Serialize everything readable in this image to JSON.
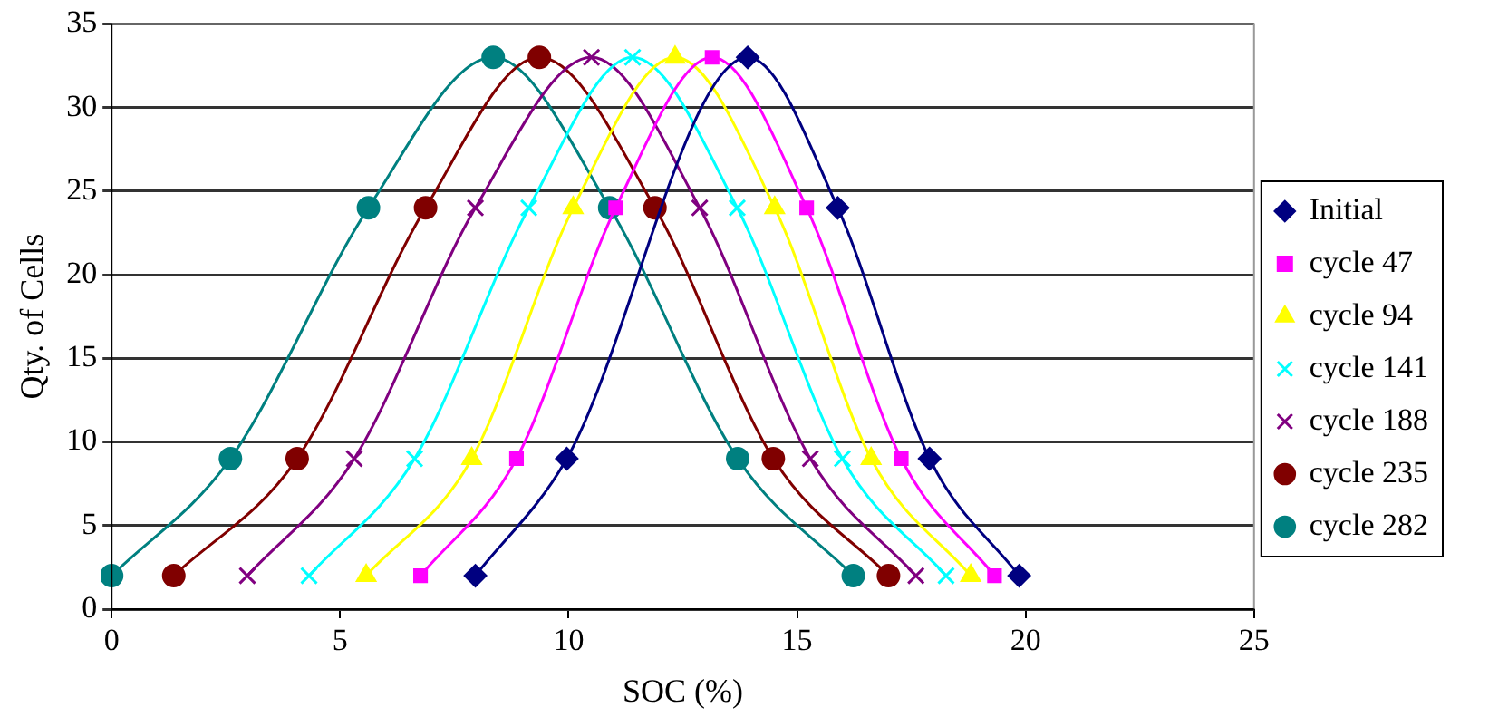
{
  "chart_data": {
    "type": "line",
    "xlabel": "SOC (%)",
    "ylabel": "Qty. of Cells",
    "xlim": [
      0,
      25
    ],
    "xticks": [
      0,
      5,
      10,
      15,
      20,
      25
    ],
    "ylim": [
      0,
      35
    ],
    "yticks": [
      0,
      5,
      10,
      15,
      20,
      25,
      30,
      35
    ],
    "grid": "y",
    "legend": "right",
    "line_style": "solid",
    "series": [
      {
        "name": "Initial",
        "color": "#000080",
        "marker": "diamond",
        "x": [
          7.96,
          9.96,
          11.9,
          13.92,
          15.89,
          17.9,
          19.86
        ],
        "values": [
          2,
          9,
          null,
          33,
          24,
          9,
          2
        ]
      },
      {
        "name": "cycle 47",
        "color": "#ff00ff",
        "marker": "square",
        "x": [
          6.76,
          8.86,
          11.03,
          13.14,
          15.21,
          17.28,
          19.32
        ],
        "values": [
          2,
          9,
          24,
          33,
          24,
          9,
          2
        ]
      },
      {
        "name": "cycle 94",
        "color": "#ffff00",
        "marker": "triangle",
        "x": [
          5.57,
          7.88,
          10.1,
          12.33,
          14.51,
          16.62,
          18.8
        ],
        "values": [
          2,
          9,
          24,
          33,
          24,
          9,
          2
        ]
      },
      {
        "name": "cycle 141",
        "color": "#00ffff",
        "marker": "cross",
        "x": [
          4.32,
          6.63,
          9.13,
          11.4,
          13.69,
          15.99,
          18.26
        ],
        "values": [
          2,
          9,
          24,
          33,
          24,
          9,
          2
        ]
      },
      {
        "name": "cycle 188",
        "color": "#800080",
        "marker": "cross",
        "x": [
          2.97,
          5.31,
          7.96,
          10.5,
          12.87,
          15.29,
          17.6
        ],
        "values": [
          2,
          9,
          24,
          33,
          24,
          9,
          2
        ]
      },
      {
        "name": "cycle 235",
        "color": "#800000",
        "marker": "circle",
        "x": [
          1.36,
          4.06,
          6.87,
          9.36,
          11.89,
          14.48,
          17.0
        ],
        "values": [
          2,
          9,
          24,
          33,
          24,
          9,
          2
        ]
      },
      {
        "name": "cycle 282",
        "color": "#008080",
        "marker": "circle",
        "x": [
          0,
          2.6,
          5.62,
          8.35,
          10.9,
          13.7,
          16.23
        ],
        "values": [
          2,
          9,
          24,
          33,
          24,
          9,
          2
        ]
      }
    ]
  }
}
